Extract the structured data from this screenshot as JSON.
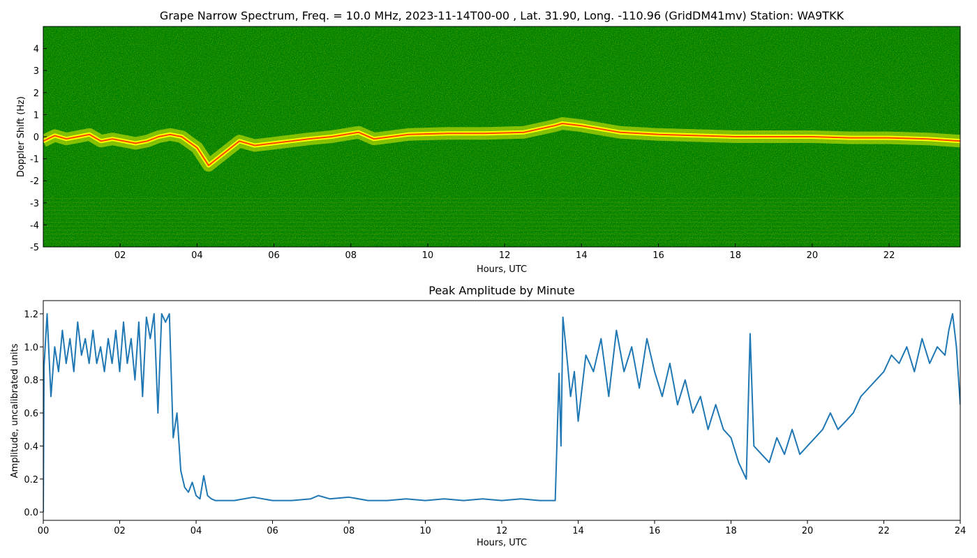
{
  "chart_data": [
    {
      "type": "heatmap",
      "title": "Grape Narrow Spectrum, Freq. = 10.0 MHz, 2023-11-14T00-00 , Lat.  31.90, Long. -110.96 (GridDM41mv) Station: WA9TKK",
      "xlabel": "Hours, UTC",
      "ylabel": "Doppler Shift (Hz)",
      "xlim": [
        0,
        23.85
      ],
      "ylim": [
        -5,
        5
      ],
      "xticks": [
        2,
        4,
        6,
        8,
        10,
        12,
        14,
        16,
        18,
        20,
        22
      ],
      "xtick_labels": [
        "02",
        "04",
        "06",
        "08",
        "10",
        "12",
        "14",
        "16",
        "18",
        "20",
        "22"
      ],
      "yticks": [
        -5,
        -4,
        -3,
        -2,
        -1,
        0,
        1,
        2,
        3,
        4
      ],
      "ytick_labels": [
        "-5",
        "-4",
        "-3",
        "-2",
        "-1",
        "0",
        "1",
        "2",
        "3",
        "4"
      ],
      "colors": {
        "background": "#008000",
        "trace": "#ffff00",
        "peak": "#ff4500"
      },
      "doppler_trace": {
        "x": [
          0.0,
          0.3,
          0.6,
          0.9,
          1.2,
          1.5,
          1.8,
          2.1,
          2.4,
          2.7,
          3.0,
          3.3,
          3.6,
          4.0,
          4.3,
          5.1,
          5.5,
          6.9,
          7.5,
          8.2,
          8.6,
          9.5,
          10.5,
          11.5,
          12.5,
          13.3,
          13.5,
          14.0,
          15.0,
          16.0,
          17.0,
          18.0,
          19.0,
          20.0,
          21.0,
          22.0,
          23.0,
          23.85
        ],
        "y": [
          -0.2,
          0.05,
          -0.1,
          0.0,
          0.1,
          -0.2,
          -0.1,
          -0.2,
          -0.3,
          -0.2,
          0.0,
          0.1,
          0.0,
          -0.5,
          -1.3,
          -0.2,
          -0.4,
          -0.1,
          0.0,
          0.2,
          -0.1,
          0.1,
          0.15,
          0.15,
          0.2,
          0.5,
          0.6,
          0.5,
          0.2,
          0.1,
          0.05,
          0.0,
          0.0,
          0.0,
          -0.05,
          -0.05,
          -0.1,
          -0.2
        ]
      }
    },
    {
      "type": "line",
      "title": "Peak Amplitude by Minute",
      "xlabel": "Hours, UTC",
      "ylabel": "Amplitude, uncalibrated units",
      "xlim": [
        0,
        24
      ],
      "ylim": [
        -0.05,
        1.28
      ],
      "xticks": [
        0,
        2,
        4,
        6,
        8,
        10,
        12,
        14,
        16,
        18,
        20,
        22,
        24
      ],
      "xtick_labels": [
        "00",
        "02",
        "04",
        "06",
        "08",
        "10",
        "12",
        "14",
        "16",
        "18",
        "20",
        "22",
        "24"
      ],
      "yticks": [
        0.0,
        0.2,
        0.4,
        0.6,
        0.8,
        1.0,
        1.2
      ],
      "ytick_labels": [
        "0.0",
        "0.2",
        "0.4",
        "0.6",
        "0.8",
        "1.0",
        "1.2"
      ],
      "colors": {
        "line": "#1f77b4"
      },
      "series": [
        {
          "x": [
            0.0,
            0.02,
            0.1,
            0.2,
            0.3,
            0.4,
            0.5,
            0.6,
            0.7,
            0.8,
            0.9,
            1.0,
            1.1,
            1.2,
            1.3,
            1.4,
            1.5,
            1.6,
            1.7,
            1.8,
            1.9,
            2.0,
            2.1,
            2.2,
            2.3,
            2.4,
            2.5,
            2.6,
            2.7,
            2.8,
            2.9,
            3.0,
            3.1,
            3.2,
            3.3,
            3.4,
            3.5,
            3.6,
            3.7,
            3.8,
            3.9,
            4.0,
            4.1,
            4.2,
            4.3,
            4.4,
            4.5,
            4.6,
            5.0,
            5.5,
            6.0,
            6.5,
            7.0,
            7.2,
            7.5,
            8.0,
            8.5,
            9.0,
            9.5,
            10.0,
            10.5,
            11.0,
            11.5,
            12.0,
            12.5,
            13.0,
            13.4,
            13.5,
            13.55,
            13.6,
            13.7,
            13.8,
            13.9,
            14.0,
            14.2,
            14.4,
            14.6,
            14.8,
            15.0,
            15.2,
            15.4,
            15.6,
            15.8,
            16.0,
            16.2,
            16.4,
            16.6,
            16.8,
            17.0,
            17.2,
            17.4,
            17.6,
            17.8,
            18.0,
            18.2,
            18.4,
            18.5,
            18.6,
            18.8,
            19.0,
            19.2,
            19.4,
            19.6,
            19.8,
            20.0,
            20.2,
            20.4,
            20.6,
            20.8,
            21.0,
            21.2,
            21.4,
            21.6,
            21.8,
            22.0,
            22.2,
            22.4,
            22.6,
            22.8,
            23.0,
            23.2,
            23.4,
            23.6,
            23.7,
            23.8,
            23.9,
            24.0
          ],
          "y": [
            0.0,
            0.88,
            1.2,
            0.7,
            1.0,
            0.85,
            1.1,
            0.9,
            1.05,
            0.85,
            1.15,
            0.95,
            1.05,
            0.9,
            1.1,
            0.9,
            1.0,
            0.85,
            1.05,
            0.9,
            1.1,
            0.85,
            1.15,
            0.9,
            1.05,
            0.8,
            1.15,
            0.7,
            1.18,
            1.05,
            1.2,
            0.6,
            1.2,
            1.15,
            1.2,
            0.45,
            0.6,
            0.25,
            0.15,
            0.12,
            0.18,
            0.1,
            0.08,
            0.22,
            0.1,
            0.08,
            0.07,
            0.07,
            0.07,
            0.09,
            0.07,
            0.07,
            0.08,
            0.1,
            0.08,
            0.09,
            0.07,
            0.07,
            0.08,
            0.07,
            0.08,
            0.07,
            0.08,
            0.07,
            0.08,
            0.07,
            0.07,
            0.84,
            0.4,
            1.18,
            0.95,
            0.7,
            0.85,
            0.55,
            0.95,
            0.85,
            1.05,
            0.7,
            1.1,
            0.85,
            1.0,
            0.75,
            1.05,
            0.85,
            0.7,
            0.9,
            0.65,
            0.8,
            0.6,
            0.7,
            0.5,
            0.65,
            0.5,
            0.45,
            0.3,
            0.2,
            1.08,
            0.4,
            0.35,
            0.3,
            0.45,
            0.35,
            0.5,
            0.35,
            0.4,
            0.45,
            0.5,
            0.6,
            0.5,
            0.55,
            0.6,
            0.7,
            0.75,
            0.8,
            0.85,
            0.95,
            0.9,
            1.0,
            0.85,
            1.05,
            0.9,
            1.0,
            0.95,
            1.1,
            1.2,
            1.0,
            0.65
          ]
        }
      ]
    }
  ]
}
